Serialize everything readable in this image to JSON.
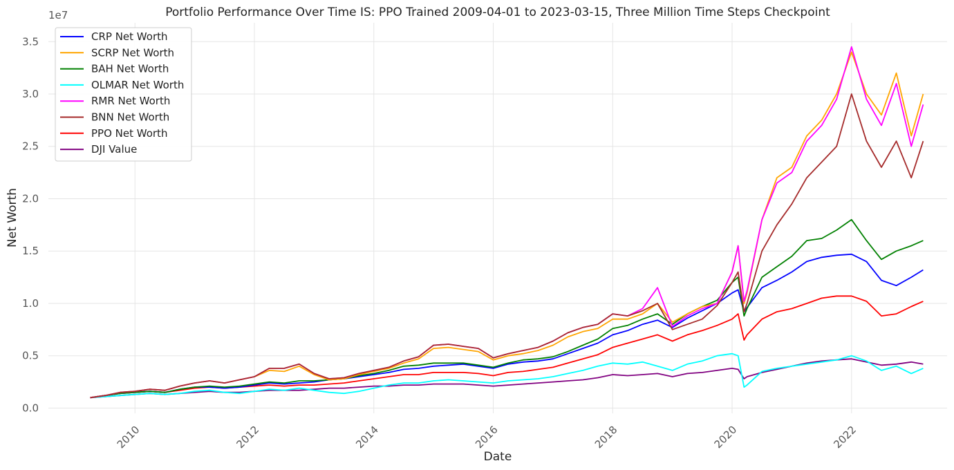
{
  "chart_data": {
    "type": "line",
    "title": "Portfolio Performance Over Time IS: PPO Trained 2009-04-01 to 2023-03-15, Three Million Time Steps Checkpoint",
    "xlabel": "Date",
    "ylabel": "Net Worth",
    "y_offset_label": "1e7",
    "ylim": [
      -0.05,
      3.68
    ],
    "xlim": [
      2008.55,
      2023.6
    ],
    "x_ticks": [
      2010,
      2012,
      2014,
      2016,
      2018,
      2020,
      2022
    ],
    "x_tick_labels": [
      "2010",
      "2012",
      "2014",
      "2016",
      "2018",
      "2020",
      "2022"
    ],
    "y_ticks": [
      0.0,
      0.5,
      1.0,
      1.5,
      2.0,
      2.5,
      3.0,
      3.5
    ],
    "y_tick_labels": [
      "0.0",
      "0.5",
      "1.0",
      "1.5",
      "2.0",
      "2.5",
      "3.0",
      "3.5"
    ],
    "grid": true,
    "legend_position": "top-left",
    "x": [
      2009.25,
      2009.5,
      2009.75,
      2010.0,
      2010.25,
      2010.5,
      2010.75,
      2011.0,
      2011.25,
      2011.5,
      2011.75,
      2012.0,
      2012.25,
      2012.5,
      2012.75,
      2013.0,
      2013.25,
      2013.5,
      2013.75,
      2014.0,
      2014.25,
      2014.5,
      2014.75,
      2015.0,
      2015.25,
      2015.5,
      2015.75,
      2016.0,
      2016.25,
      2016.5,
      2016.75,
      2017.0,
      2017.25,
      2017.5,
      2017.75,
      2018.0,
      2018.25,
      2018.5,
      2018.75,
      2019.0,
      2019.25,
      2019.5,
      2019.75,
      2020.0,
      2020.1,
      2020.2,
      2020.25,
      2020.5,
      2020.75,
      2021.0,
      2021.25,
      2021.5,
      2021.75,
      2022.0,
      2022.25,
      2022.5,
      2022.75,
      2023.0,
      2023.2
    ],
    "series": [
      {
        "name": "CRP Net Worth",
        "color": "#0000ff",
        "values": [
          0.1,
          0.12,
          0.14,
          0.15,
          0.16,
          0.15,
          0.18,
          0.2,
          0.2,
          0.19,
          0.2,
          0.22,
          0.24,
          0.23,
          0.24,
          0.25,
          0.27,
          0.28,
          0.3,
          0.32,
          0.34,
          0.37,
          0.38,
          0.4,
          0.41,
          0.42,
          0.4,
          0.38,
          0.42,
          0.44,
          0.45,
          0.47,
          0.52,
          0.57,
          0.62,
          0.7,
          0.74,
          0.8,
          0.84,
          0.77,
          0.86,
          0.93,
          1.0,
          1.1,
          1.13,
          0.92,
          0.96,
          1.15,
          1.22,
          1.3,
          1.4,
          1.44,
          1.46,
          1.47,
          1.4,
          1.22,
          1.17,
          1.25,
          1.32
        ]
      },
      {
        "name": "SCRP Net Worth",
        "color": "#ffa500",
        "values": [
          0.1,
          0.12,
          0.15,
          0.16,
          0.18,
          0.17,
          0.21,
          0.24,
          0.26,
          0.24,
          0.27,
          0.3,
          0.36,
          0.35,
          0.4,
          0.32,
          0.27,
          0.28,
          0.32,
          0.35,
          0.38,
          0.43,
          0.47,
          0.57,
          0.58,
          0.56,
          0.54,
          0.46,
          0.5,
          0.52,
          0.55,
          0.6,
          0.68,
          0.73,
          0.76,
          0.85,
          0.85,
          0.9,
          1.0,
          0.82,
          0.9,
          0.97,
          1.0,
          1.3,
          1.55,
          1.0,
          1.1,
          1.8,
          2.2,
          2.3,
          2.6,
          2.75,
          3.0,
          3.4,
          3.0,
          2.8,
          3.2,
          2.6,
          3.0
        ]
      },
      {
        "name": "BAH Net Worth",
        "color": "#008000",
        "values": [
          0.1,
          0.12,
          0.14,
          0.15,
          0.16,
          0.15,
          0.18,
          0.2,
          0.21,
          0.2,
          0.21,
          0.23,
          0.25,
          0.24,
          0.26,
          0.26,
          0.27,
          0.28,
          0.31,
          0.33,
          0.36,
          0.4,
          0.41,
          0.43,
          0.43,
          0.43,
          0.41,
          0.39,
          0.43,
          0.46,
          0.47,
          0.49,
          0.54,
          0.6,
          0.66,
          0.76,
          0.79,
          0.85,
          0.9,
          0.8,
          0.9,
          0.97,
          1.03,
          1.2,
          1.25,
          0.88,
          0.95,
          1.25,
          1.35,
          1.45,
          1.6,
          1.62,
          1.7,
          1.8,
          1.6,
          1.42,
          1.5,
          1.55,
          1.6
        ]
      },
      {
        "name": "OLMAR Net Worth",
        "color": "#00ffff",
        "values": [
          0.1,
          0.11,
          0.12,
          0.13,
          0.14,
          0.13,
          0.14,
          0.16,
          0.17,
          0.15,
          0.14,
          0.16,
          0.18,
          0.17,
          0.19,
          0.17,
          0.15,
          0.14,
          0.16,
          0.19,
          0.22,
          0.24,
          0.24,
          0.26,
          0.27,
          0.26,
          0.25,
          0.24,
          0.26,
          0.27,
          0.28,
          0.3,
          0.33,
          0.36,
          0.4,
          0.43,
          0.42,
          0.44,
          0.4,
          0.36,
          0.42,
          0.45,
          0.5,
          0.52,
          0.5,
          0.2,
          0.22,
          0.35,
          0.38,
          0.4,
          0.42,
          0.44,
          0.46,
          0.5,
          0.45,
          0.36,
          0.4,
          0.33,
          0.38
        ]
      },
      {
        "name": "RMR Net Worth",
        "color": "#ff00ff",
        "values": [
          0.1,
          0.12,
          0.15,
          0.16,
          0.18,
          0.17,
          0.21,
          0.24,
          0.26,
          0.24,
          0.27,
          0.3,
          0.38,
          0.38,
          0.42,
          0.33,
          0.28,
          0.29,
          0.33,
          0.36,
          0.39,
          0.45,
          0.49,
          0.6,
          0.61,
          0.59,
          0.57,
          0.48,
          0.52,
          0.55,
          0.58,
          0.64,
          0.72,
          0.77,
          0.8,
          0.9,
          0.88,
          0.95,
          1.15,
          0.78,
          0.88,
          0.95,
          1.0,
          1.3,
          1.55,
          1.02,
          1.12,
          1.8,
          2.15,
          2.25,
          2.55,
          2.7,
          2.95,
          3.45,
          2.95,
          2.7,
          3.1,
          2.5,
          2.9
        ]
      },
      {
        "name": "BNN Net Worth",
        "color": "#a52a2a",
        "values": [
          0.1,
          0.12,
          0.15,
          0.16,
          0.18,
          0.17,
          0.21,
          0.24,
          0.26,
          0.24,
          0.27,
          0.3,
          0.38,
          0.38,
          0.42,
          0.33,
          0.28,
          0.29,
          0.33,
          0.36,
          0.39,
          0.45,
          0.49,
          0.6,
          0.61,
          0.59,
          0.57,
          0.48,
          0.52,
          0.55,
          0.58,
          0.64,
          0.72,
          0.77,
          0.8,
          0.9,
          0.88,
          0.93,
          1.0,
          0.75,
          0.8,
          0.85,
          0.98,
          1.2,
          1.3,
          0.92,
          1.0,
          1.5,
          1.75,
          1.95,
          2.2,
          2.35,
          2.5,
          3.0,
          2.55,
          2.3,
          2.55,
          2.2,
          2.55
        ]
      },
      {
        "name": "PPO Net Worth",
        "color": "#ff0000",
        "values": [
          0.1,
          0.12,
          0.14,
          0.15,
          0.16,
          0.15,
          0.17,
          0.19,
          0.2,
          0.19,
          0.2,
          0.21,
          0.22,
          0.21,
          0.22,
          0.22,
          0.23,
          0.24,
          0.26,
          0.28,
          0.3,
          0.32,
          0.32,
          0.34,
          0.34,
          0.34,
          0.33,
          0.31,
          0.34,
          0.35,
          0.37,
          0.39,
          0.43,
          0.47,
          0.51,
          0.58,
          0.62,
          0.66,
          0.7,
          0.64,
          0.7,
          0.74,
          0.79,
          0.85,
          0.9,
          0.65,
          0.7,
          0.85,
          0.92,
          0.95,
          1.0,
          1.05,
          1.07,
          1.07,
          1.02,
          0.88,
          0.9,
          0.97,
          1.02
        ]
      },
      {
        "name": "DJI Value",
        "color": "#800080",
        "values": [
          0.1,
          0.11,
          0.12,
          0.13,
          0.14,
          0.13,
          0.14,
          0.15,
          0.16,
          0.15,
          0.15,
          0.16,
          0.17,
          0.17,
          0.17,
          0.18,
          0.19,
          0.19,
          0.2,
          0.21,
          0.21,
          0.22,
          0.22,
          0.23,
          0.23,
          0.23,
          0.22,
          0.21,
          0.22,
          0.23,
          0.24,
          0.25,
          0.26,
          0.27,
          0.29,
          0.32,
          0.31,
          0.32,
          0.33,
          0.3,
          0.33,
          0.34,
          0.36,
          0.38,
          0.37,
          0.28,
          0.3,
          0.34,
          0.37,
          0.4,
          0.43,
          0.45,
          0.46,
          0.47,
          0.44,
          0.41,
          0.42,
          0.44,
          0.42
        ]
      }
    ]
  }
}
